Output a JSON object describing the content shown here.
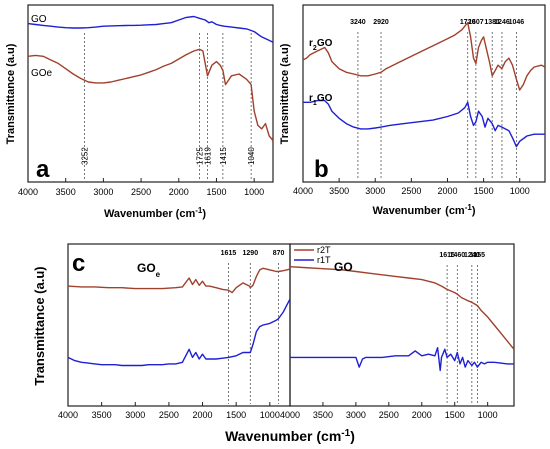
{
  "chart_data": [
    {
      "panel": "a",
      "type": "line",
      "xlabel": "Wavenumber (cm",
      "xlabel_sup": "-1",
      "xlabel_close": ")",
      "ylabel": "Transmittance (a.u)",
      "xlim": [
        4000,
        750
      ],
      "ylim": [
        0,
        1
      ],
      "x_ticks": [
        4000,
        3500,
        3000,
        2500,
        2000,
        1500,
        1000
      ],
      "y_ticks": [],
      "grid": false,
      "legend": "none",
      "series": [
        {
          "name": "GO",
          "color": "#1f1fd6",
          "x": [
            4000,
            3900,
            3800,
            3700,
            3600,
            3500,
            3400,
            3300,
            3200,
            3100,
            3000,
            2900,
            2800,
            2700,
            2600,
            2500,
            2400,
            2300,
            2200,
            2100,
            2000,
            1900,
            1800,
            1725,
            1650,
            1600,
            1560,
            1500,
            1450,
            1400,
            1300,
            1200,
            1100,
            1000,
            900,
            800,
            750
          ],
          "y": [
            0.895,
            0.89,
            0.885,
            0.88,
            0.875,
            0.872,
            0.87,
            0.87,
            0.872,
            0.875,
            0.88,
            0.882,
            0.883,
            0.884,
            0.885,
            0.886,
            0.888,
            0.89,
            0.895,
            0.9,
            0.915,
            0.93,
            0.935,
            0.925,
            0.915,
            0.9,
            0.905,
            0.89,
            0.885,
            0.88,
            0.875,
            0.87,
            0.865,
            0.85,
            0.82,
            0.8,
            0.79
          ]
        },
        {
          "name": "GOe",
          "color": "#a0412d",
          "x": [
            4000,
            3900,
            3800,
            3700,
            3600,
            3500,
            3400,
            3300,
            3200,
            3100,
            3000,
            2900,
            2800,
            2700,
            2600,
            2500,
            2400,
            2300,
            2200,
            2100,
            2000,
            1900,
            1800,
            1725,
            1680,
            1619,
            1560,
            1500,
            1450,
            1415,
            1380,
            1300,
            1200,
            1100,
            1040,
            1000,
            950,
            900,
            850,
            800,
            760,
            750
          ],
          "y": [
            0.71,
            0.715,
            0.71,
            0.69,
            0.67,
            0.64,
            0.61,
            0.585,
            0.565,
            0.56,
            0.56,
            0.565,
            0.575,
            0.585,
            0.595,
            0.605,
            0.62,
            0.635,
            0.655,
            0.67,
            0.695,
            0.72,
            0.74,
            0.75,
            0.74,
            0.6,
            0.66,
            0.68,
            0.66,
            0.63,
            0.55,
            0.6,
            0.61,
            0.58,
            0.55,
            0.4,
            0.32,
            0.3,
            0.33,
            0.26,
            0.24,
            0.23
          ]
        }
      ],
      "peaks": [
        {
          "label": "3252",
          "x": 3252
        },
        {
          "label": "1725",
          "x": 1725
        },
        {
          "label": "1619",
          "x": 1619
        },
        {
          "label": "1415",
          "x": 1415
        },
        {
          "label": "1040",
          "x": 1040
        }
      ]
    },
    {
      "panel": "b",
      "type": "line",
      "xlabel": "Wavenumber",
      "xlabel_unit": "(cm",
      "xlabel_sup": "-1",
      "xlabel_close": ")",
      "ylabel": "Transmittance (a.u)",
      "xlim": [
        4000,
        650
      ],
      "ylim": [
        0,
        1
      ],
      "x_ticks": [
        4000,
        3500,
        3000,
        2500,
        2000,
        1500,
        1000
      ],
      "y_ticks": [],
      "grid": false,
      "legend": "none",
      "series": [
        {
          "name": "r2GO",
          "label_main": "r",
          "label_sub": "2",
          "label_end": "GO",
          "color": "#a0412d",
          "x": [
            4000,
            3950,
            3900,
            3800,
            3700,
            3650,
            3600,
            3500,
            3400,
            3300,
            3200,
            3100,
            3000,
            2920,
            2850,
            2700,
            2500,
            2300,
            2100,
            1900,
            1800,
            1760,
            1720,
            1680,
            1640,
            1607,
            1570,
            1530,
            1500,
            1460,
            1420,
            1381,
            1340,
            1300,
            1246,
            1200,
            1150,
            1100,
            1046,
            1000,
            950,
            900,
            850,
            800,
            700,
            650
          ],
          "y": [
            0.69,
            0.7,
            0.72,
            0.74,
            0.76,
            0.73,
            0.68,
            0.64,
            0.62,
            0.61,
            0.6,
            0.6,
            0.61,
            0.62,
            0.64,
            0.67,
            0.71,
            0.75,
            0.79,
            0.83,
            0.86,
            0.88,
            0.9,
            0.82,
            0.7,
            0.67,
            0.76,
            0.8,
            0.82,
            0.75,
            0.68,
            0.6,
            0.63,
            0.66,
            0.64,
            0.68,
            0.7,
            0.66,
            0.58,
            0.52,
            0.55,
            0.6,
            0.63,
            0.65,
            0.66,
            0.65
          ]
        },
        {
          "name": "r1GO",
          "label_main": "r",
          "label_sub": "1",
          "label_end": "GO",
          "color": "#1f1fd6",
          "x": [
            4000,
            3900,
            3800,
            3700,
            3650,
            3600,
            3500,
            3400,
            3300,
            3200,
            3100,
            3000,
            2920,
            2800,
            2600,
            2400,
            2200,
            2000,
            1850,
            1760,
            1720,
            1680,
            1640,
            1607,
            1570,
            1520,
            1480,
            1440,
            1381,
            1340,
            1300,
            1246,
            1200,
            1150,
            1100,
            1046,
            1000,
            900,
            800,
            700,
            650
          ],
          "y": [
            0.45,
            0.45,
            0.46,
            0.46,
            0.44,
            0.4,
            0.36,
            0.33,
            0.31,
            0.3,
            0.3,
            0.305,
            0.31,
            0.32,
            0.33,
            0.34,
            0.35,
            0.37,
            0.39,
            0.42,
            0.45,
            0.37,
            0.32,
            0.34,
            0.4,
            0.37,
            0.31,
            0.36,
            0.33,
            0.29,
            0.32,
            0.31,
            0.3,
            0.29,
            0.25,
            0.2,
            0.23,
            0.26,
            0.27,
            0.27,
            0.27
          ]
        }
      ],
      "peaks": [
        {
          "label": "3240",
          "x": 3240
        },
        {
          "label": "2920",
          "x": 2920
        },
        {
          "label": "1720",
          "x": 1720
        },
        {
          "label": "1607",
          "x": 1607
        },
        {
          "label": "1381",
          "x": 1381
        },
        {
          "label": "1246",
          "x": 1246
        },
        {
          "label": "1046",
          "x": 1046
        }
      ]
    },
    {
      "panel": "c",
      "type": "line",
      "xlabel": "Wavenumber (cm",
      "xlabel_sup": "-1",
      "xlabel_close": ")",
      "ylabel": "Transmittance (a.u)",
      "xlim": [
        4000,
        700
      ],
      "ylim": [
        0,
        1
      ],
      "x_ticks": [
        4000,
        3500,
        3000,
        2500,
        2000,
        1500,
        1000
      ],
      "y_ticks": [],
      "grid": false,
      "legend": "top-right",
      "subpanels": [
        {
          "title_main": "GO",
          "title_sub": "e",
          "xlim": [
            4000,
            700
          ],
          "series": [
            {
              "name": "r2T",
              "color": "#a0412d",
              "x": [
                4000,
                3800,
                3600,
                3400,
                3200,
                3000,
                2800,
                2600,
                2400,
                2300,
                2200,
                2150,
                2100,
                2050,
                2000,
                1950,
                1900,
                1800,
                1700,
                1615,
                1560,
                1500,
                1400,
                1300,
                1290,
                1250,
                1200,
                1150,
                1100,
                1050,
                1000,
                950,
                900,
                870,
                800,
                750,
                700
              ],
              "y": [
                0.74,
                0.735,
                0.735,
                0.73,
                0.73,
                0.725,
                0.725,
                0.725,
                0.73,
                0.735,
                0.79,
                0.75,
                0.78,
                0.745,
                0.77,
                0.74,
                0.74,
                0.73,
                0.72,
                0.715,
                0.7,
                0.73,
                0.76,
                0.74,
                0.73,
                0.745,
                0.8,
                0.84,
                0.85,
                0.845,
                0.84,
                0.835,
                0.83,
                0.83,
                0.835,
                0.84,
                0.845
              ]
            },
            {
              "name": "r1T",
              "color": "#1f1fd6",
              "x": [
                4000,
                3900,
                3800,
                3700,
                3600,
                3500,
                3400,
                3300,
                3200,
                3100,
                3000,
                2900,
                2800,
                2700,
                2600,
                2500,
                2400,
                2300,
                2200,
                2150,
                2100,
                2050,
                2000,
                1950,
                1900,
                1800,
                1700,
                1615,
                1500,
                1400,
                1300,
                1290,
                1250,
                1200,
                1150,
                1100,
                1000,
                900,
                870,
                800,
                750,
                700
              ],
              "y": [
                0.3,
                0.28,
                0.27,
                0.265,
                0.26,
                0.255,
                0.255,
                0.255,
                0.25,
                0.25,
                0.25,
                0.25,
                0.255,
                0.255,
                0.255,
                0.26,
                0.26,
                0.27,
                0.35,
                0.3,
                0.33,
                0.29,
                0.32,
                0.29,
                0.29,
                0.29,
                0.295,
                0.3,
                0.31,
                0.33,
                0.33,
                0.33,
                0.38,
                0.46,
                0.49,
                0.5,
                0.51,
                0.53,
                0.54,
                0.58,
                0.62,
                0.66
              ]
            }
          ],
          "peaks": [
            {
              "label": "1615",
              "x": 1615
            },
            {
              "label": "1290",
              "x": 1290
            },
            {
              "label": "870",
              "x": 870
            }
          ]
        },
        {
          "title_main": "GO",
          "title_sub": "",
          "xlim": [
            4000,
            600
          ],
          "series": [
            {
              "name": "r2T",
              "color": "#a0412d",
              "x": [
                4000,
                3800,
                3600,
                3400,
                3200,
                3000,
                2800,
                2600,
                2400,
                2200,
                2000,
                1800,
                1700,
                1615,
                1500,
                1460,
                1400,
                1300,
                1240,
                1200,
                1155,
                1100,
                1000,
                900,
                800,
                700,
                600
              ],
              "y": [
                0.86,
                0.855,
                0.85,
                0.845,
                0.84,
                0.83,
                0.82,
                0.81,
                0.8,
                0.79,
                0.78,
                0.76,
                0.74,
                0.72,
                0.7,
                0.69,
                0.67,
                0.65,
                0.64,
                0.63,
                0.62,
                0.59,
                0.55,
                0.5,
                0.45,
                0.4,
                0.35
              ]
            },
            {
              "name": "r1T",
              "color": "#1f1fd6",
              "x": [
                4000,
                3800,
                3600,
                3400,
                3200,
                3000,
                2950,
                2900,
                2850,
                2800,
                2600,
                2400,
                2200,
                2100,
                2000,
                1900,
                1800,
                1760,
                1720,
                1700,
                1650,
                1615,
                1560,
                1500,
                1460,
                1420,
                1380,
                1340,
                1300,
                1240,
                1200,
                1155,
                1100,
                1050,
                1000,
                900,
                800,
                700,
                600
              ],
              "y": [
                0.3,
                0.3,
                0.3,
                0.3,
                0.3,
                0.3,
                0.24,
                0.29,
                0.3,
                0.3,
                0.3,
                0.31,
                0.31,
                0.34,
                0.31,
                0.32,
                0.31,
                0.36,
                0.22,
                0.3,
                0.35,
                0.3,
                0.32,
                0.28,
                0.33,
                0.26,
                0.3,
                0.24,
                0.28,
                0.25,
                0.27,
                0.24,
                0.27,
                0.26,
                0.27,
                0.27,
                0.265,
                0.26,
                0.26
              ]
            }
          ],
          "peaks": [
            {
              "label": "1615",
              "x": 1615
            },
            {
              "label": "1460",
              "x": 1460
            },
            {
              "label": "1240",
              "x": 1240
            },
            {
              "label": "1155",
              "x": 1155
            }
          ]
        }
      ]
    }
  ]
}
